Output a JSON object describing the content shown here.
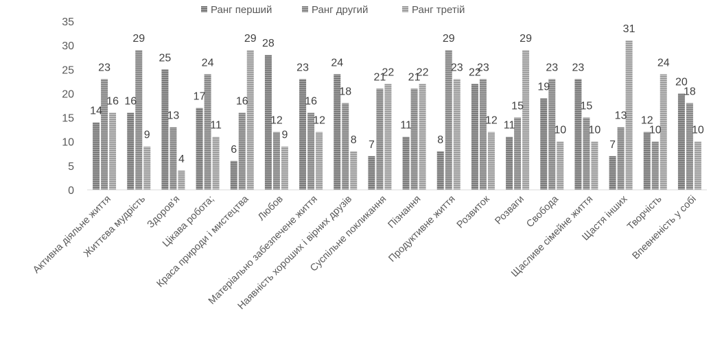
{
  "chart_data": {
    "type": "bar",
    "title": "",
    "xlabel": "",
    "ylabel": "",
    "ylim": [
      0,
      35
    ],
    "yticks": [
      0,
      5,
      10,
      15,
      20,
      25,
      30,
      35
    ],
    "grid": false,
    "legend_position": "top",
    "categories": [
      "Активна діяльне життя",
      "Життєва мудрість",
      "Здоров'я",
      "Цікава робота;",
      "Краса природи і мистецтва",
      "Любов",
      "Матеріально забезпечене життя",
      "Наявність хороших і вірних друзів",
      "Суспільне покликання",
      "Пізнання",
      "Продуктивне життя",
      "Розвиток",
      "Розваги",
      "Свобода",
      "Щасливе сімейне життя",
      "Щастя інших",
      "Творчість",
      "Впевненість у собі"
    ],
    "series": [
      {
        "name": "Ранг перший",
        "values": [
          14,
          16,
          25,
          17,
          6,
          28,
          23,
          24,
          7,
          11,
          8,
          22,
          11,
          19,
          23,
          7,
          12,
          20
        ]
      },
      {
        "name": "Ранг другий",
        "values": [
          23,
          29,
          13,
          24,
          16,
          12,
          16,
          18,
          21,
          21,
          29,
          23,
          15,
          23,
          15,
          13,
          10,
          18
        ]
      },
      {
        "name": "Ранг третій",
        "values": [
          16,
          9,
          4,
          11,
          29,
          9,
          12,
          8,
          22,
          22,
          23,
          12,
          29,
          10,
          10,
          31,
          24,
          10
        ]
      }
    ],
    "colors": {
      "series": [
        "#8c8c8c",
        "#9a9a9a",
        "#b0b0b0"
      ],
      "stripe": "#6e6e6e",
      "axis": "#d9d9d9"
    }
  }
}
